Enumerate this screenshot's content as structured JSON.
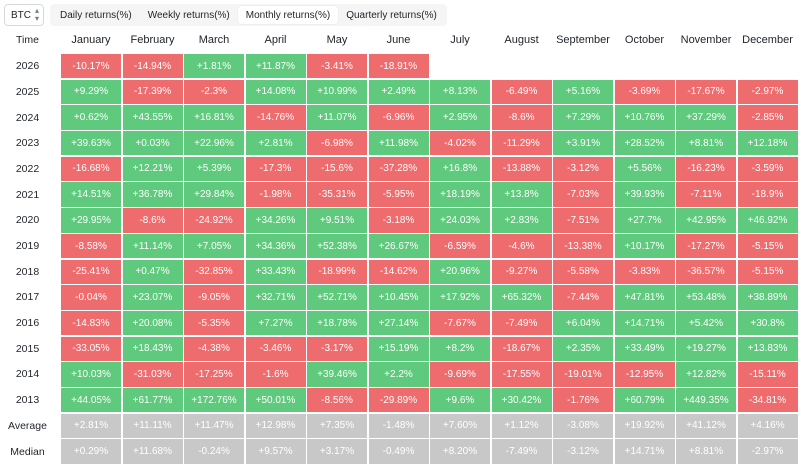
{
  "toolbar": {
    "asset": "BTC",
    "tabs": [
      "Daily returns(%)",
      "Weekly returns(%)",
      "Monthly returns(%)",
      "Quarterly returns(%)"
    ],
    "active_tab": 2
  },
  "colors": {
    "positive": "#5fc97d",
    "negative": "#ee6b6e",
    "summary": "#c8c8c8"
  },
  "table": {
    "header_label": "Time",
    "months": [
      "January",
      "February",
      "March",
      "April",
      "May",
      "June",
      "July",
      "August",
      "September",
      "October",
      "November",
      "December"
    ],
    "rows": [
      {
        "label": "2026",
        "values": [
          "-10.17%",
          "-14.94%",
          "+1.81%",
          "+11.87%",
          "-3.41%",
          "-18.91%",
          "",
          "",
          "",
          "",
          "",
          ""
        ]
      },
      {
        "label": "2025",
        "values": [
          "+9.29%",
          "-17.39%",
          "-2.3%",
          "+14.08%",
          "+10.99%",
          "+2.49%",
          "+8.13%",
          "-6.49%",
          "+5.16%",
          "-3.69%",
          "-17.67%",
          "-2.97%"
        ]
      },
      {
        "label": "2024",
        "values": [
          "+0.62%",
          "+43.55%",
          "+16.81%",
          "-14.76%",
          "+11.07%",
          "-6.96%",
          "+2.95%",
          "-8.6%",
          "+7.29%",
          "+10.76%",
          "+37.29%",
          "-2.85%"
        ]
      },
      {
        "label": "2023",
        "values": [
          "+39.63%",
          "+0.03%",
          "+22.96%",
          "+2.81%",
          "-6.98%",
          "+11.98%",
          "-4.02%",
          "-11.29%",
          "+3.91%",
          "+28.52%",
          "+8.81%",
          "+12.18%"
        ]
      },
      {
        "label": "2022",
        "values": [
          "-16.68%",
          "+12.21%",
          "+5.39%",
          "-17.3%",
          "-15.6%",
          "-37.28%",
          "+16.8%",
          "-13.88%",
          "-3.12%",
          "+5.56%",
          "-16.23%",
          "-3.59%"
        ]
      },
      {
        "label": "2021",
        "values": [
          "+14.51%",
          "+36.78%",
          "+29.84%",
          "-1.98%",
          "-35.31%",
          "-5.95%",
          "+18.19%",
          "+13.8%",
          "-7.03%",
          "+39.93%",
          "-7.11%",
          "-18.9%"
        ]
      },
      {
        "label": "2020",
        "values": [
          "+29.95%",
          "-8.6%",
          "-24.92%",
          "+34.26%",
          "+9.51%",
          "-3.18%",
          "+24.03%",
          "+2.83%",
          "-7.51%",
          "+27.7%",
          "+42.95%",
          "+46.92%"
        ]
      },
      {
        "label": "2019",
        "values": [
          "-8.58%",
          "+11.14%",
          "+7.05%",
          "+34.36%",
          "+52.38%",
          "+26.67%",
          "-6.59%",
          "-4.6%",
          "-13.38%",
          "+10.17%",
          "-17.27%",
          "-5.15%"
        ]
      },
      {
        "label": "2018",
        "values": [
          "-25.41%",
          "+0.47%",
          "-32.85%",
          "+33.43%",
          "-18.99%",
          "-14.62%",
          "+20.96%",
          "-9.27%",
          "-5.58%",
          "-3.83%",
          "-36.57%",
          "-5.15%"
        ]
      },
      {
        "label": "2017",
        "values": [
          "-0.04%",
          "+23.07%",
          "-9.05%",
          "+32.71%",
          "+52.71%",
          "+10.45%",
          "+17.92%",
          "+65.32%",
          "-7.44%",
          "+47.81%",
          "+53.48%",
          "+38.89%"
        ]
      },
      {
        "label": "2016",
        "values": [
          "-14.83%",
          "+20.08%",
          "-5.35%",
          "+7.27%",
          "+18.78%",
          "+27.14%",
          "-7.67%",
          "-7.49%",
          "+6.04%",
          "+14.71%",
          "+5.42%",
          "+30.8%"
        ]
      },
      {
        "label": "2015",
        "values": [
          "-33.05%",
          "+18.43%",
          "-4.38%",
          "-3.46%",
          "-3.17%",
          "+15.19%",
          "+8.2%",
          "-18.67%",
          "+2.35%",
          "+33.49%",
          "+19.27%",
          "+13.83%"
        ]
      },
      {
        "label": "2014",
        "values": [
          "+10.03%",
          "-31.03%",
          "-17.25%",
          "-1.6%",
          "+39.46%",
          "+2.2%",
          "-9.69%",
          "-17.55%",
          "-19.01%",
          "-12.95%",
          "+12.82%",
          "-15.11%"
        ]
      },
      {
        "label": "2013",
        "values": [
          "+44.05%",
          "+61.77%",
          "+172.76%",
          "+50.01%",
          "-8.56%",
          "-29.89%",
          "+9.6%",
          "+30.42%",
          "-1.76%",
          "+60.79%",
          "+449.35%",
          "-34.81%"
        ]
      }
    ],
    "summary_rows": [
      {
        "label": "Average",
        "values": [
          "+2.81%",
          "+11.11%",
          "+11.47%",
          "+12.98%",
          "+7.35%",
          "-1.48%",
          "+7.60%",
          "+1.12%",
          "-3.08%",
          "+19.92%",
          "+41.12%",
          "+4.16%"
        ]
      },
      {
        "label": "Median",
        "values": [
          "+0.29%",
          "+11.68%",
          "-0.24%",
          "+9.57%",
          "+3.17%",
          "-0.49%",
          "+8.20%",
          "-7.49%",
          "-3.12%",
          "+14.71%",
          "+8.81%",
          "-2.97%"
        ]
      }
    ]
  }
}
